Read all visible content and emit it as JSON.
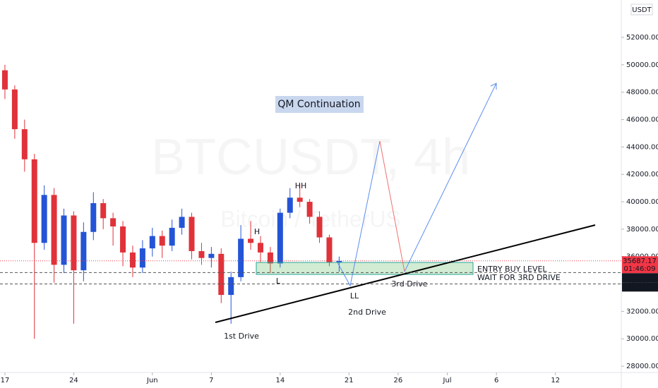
{
  "chart_data": {
    "type": "candlestick",
    "watermark": "BTCUSDT, 4h",
    "watermark_subtitle": "Bitcoin / TetherUS",
    "currency": "USDT",
    "x": [
      0,
      1,
      2,
      3,
      4,
      5,
      6,
      7,
      8,
      9,
      10,
      11,
      12,
      13,
      14,
      15,
      16,
      17,
      18,
      19,
      20,
      21,
      22,
      23,
      24,
      25,
      26,
      27,
      28,
      29,
      30,
      31,
      32,
      33,
      34
    ],
    "open": [
      49600,
      48200,
      45300,
      43100,
      37000,
      40500,
      35400,
      39000,
      35000,
      37800,
      39900,
      38800,
      38200,
      36300,
      35200,
      36600,
      37500,
      36800,
      38100,
      38900,
      36400,
      35900,
      36200,
      33200,
      34500,
      37300,
      37000,
      36300,
      35500,
      39200,
      40300,
      40000,
      38900,
      37400,
      35600
    ],
    "high": [
      50000,
      48500,
      46000,
      43500,
      41200,
      41000,
      39500,
      39300,
      38500,
      40700,
      40200,
      39200,
      38600,
      36800,
      37200,
      38100,
      37900,
      38700,
      39500,
      39200,
      37000,
      36700,
      36600,
      34900,
      38300,
      38600,
      37500,
      36700,
      39500,
      41000,
      41300,
      40200,
      39300,
      37600,
      36000
    ],
    "low": [
      47500,
      44600,
      42200,
      30000,
      36500,
      34100,
      34800,
      31100,
      34200,
      37200,
      38000,
      36800,
      35300,
      34500,
      34800,
      36000,
      35900,
      36400,
      37600,
      35800,
      35400,
      35200,
      32600,
      31100,
      34200,
      36500,
      35600,
      34800,
      35200,
      38800,
      39600,
      38400,
      37000,
      35300,
      34900
    ],
    "close": [
      48200,
      45300,
      43100,
      37000,
      40500,
      35400,
      39000,
      35000,
      37800,
      39900,
      38800,
      38200,
      36300,
      35200,
      36600,
      37500,
      36800,
      38100,
      38900,
      36400,
      35900,
      36200,
      33200,
      34500,
      37300,
      37000,
      36300,
      35500,
      39200,
      40300,
      40000,
      38900,
      37400,
      35600,
      35687.17
    ],
    "up_color": "#2454d6",
    "down_color": "#e0323a",
    "xlim": [
      -0.5,
      62.7
    ],
    "xticks": [
      {
        "value": 0,
        "label": "17"
      },
      {
        "value": 7,
        "label": "24"
      },
      {
        "value": 15,
        "label": "Jun"
      },
      {
        "value": 21,
        "label": "7"
      },
      {
        "value": 28,
        "label": "14"
      },
      {
        "value": 35,
        "label": "21"
      },
      {
        "value": 40,
        "label": "26"
      },
      {
        "value": 45,
        "label": "Jul"
      },
      {
        "value": 50,
        "label": "6"
      },
      {
        "value": 56,
        "label": "12"
      }
    ],
    "ylim": [
      27540,
      54730
    ],
    "yticks": [
      {
        "value": 28000,
        "label": "28000.00"
      },
      {
        "value": 30000,
        "label": "30000.00"
      },
      {
        "value": 32000,
        "label": "32000.00"
      },
      {
        "value": 34000,
        "label": "34000.00"
      },
      {
        "value": 36000,
        "label": "36000.00"
      },
      {
        "value": 38000,
        "label": "38000.00"
      },
      {
        "value": 40000,
        "label": "40000.00"
      },
      {
        "value": 42000,
        "label": "42000.00"
      },
      {
        "value": 44000,
        "label": "44000.00"
      },
      {
        "value": 46000,
        "label": "46000.00"
      },
      {
        "value": 48000,
        "label": "48000.00"
      },
      {
        "value": 50000,
        "label": "50000.00"
      },
      {
        "value": 52000,
        "label": "52000.00"
      }
    ],
    "price_lines": [
      {
        "value": 35687.17,
        "countdown": "01:46:09",
        "color": "#f23645"
      },
      {
        "value": 34835.57,
        "color": "#131722"
      },
      {
        "value": 34000.12,
        "color": "#131722"
      }
    ],
    "annotations": {
      "title": "QM Continuation",
      "hh": "HH",
      "h": "H",
      "l": "L",
      "ll": "LL",
      "first_drive": "1st Drive",
      "second_drive": "2nd Drive",
      "third_drive": "3rd Drive",
      "entry": "ENTRY BUY LEVEL",
      "wait": "WAIT FOR 3RD DRIVE"
    }
  }
}
